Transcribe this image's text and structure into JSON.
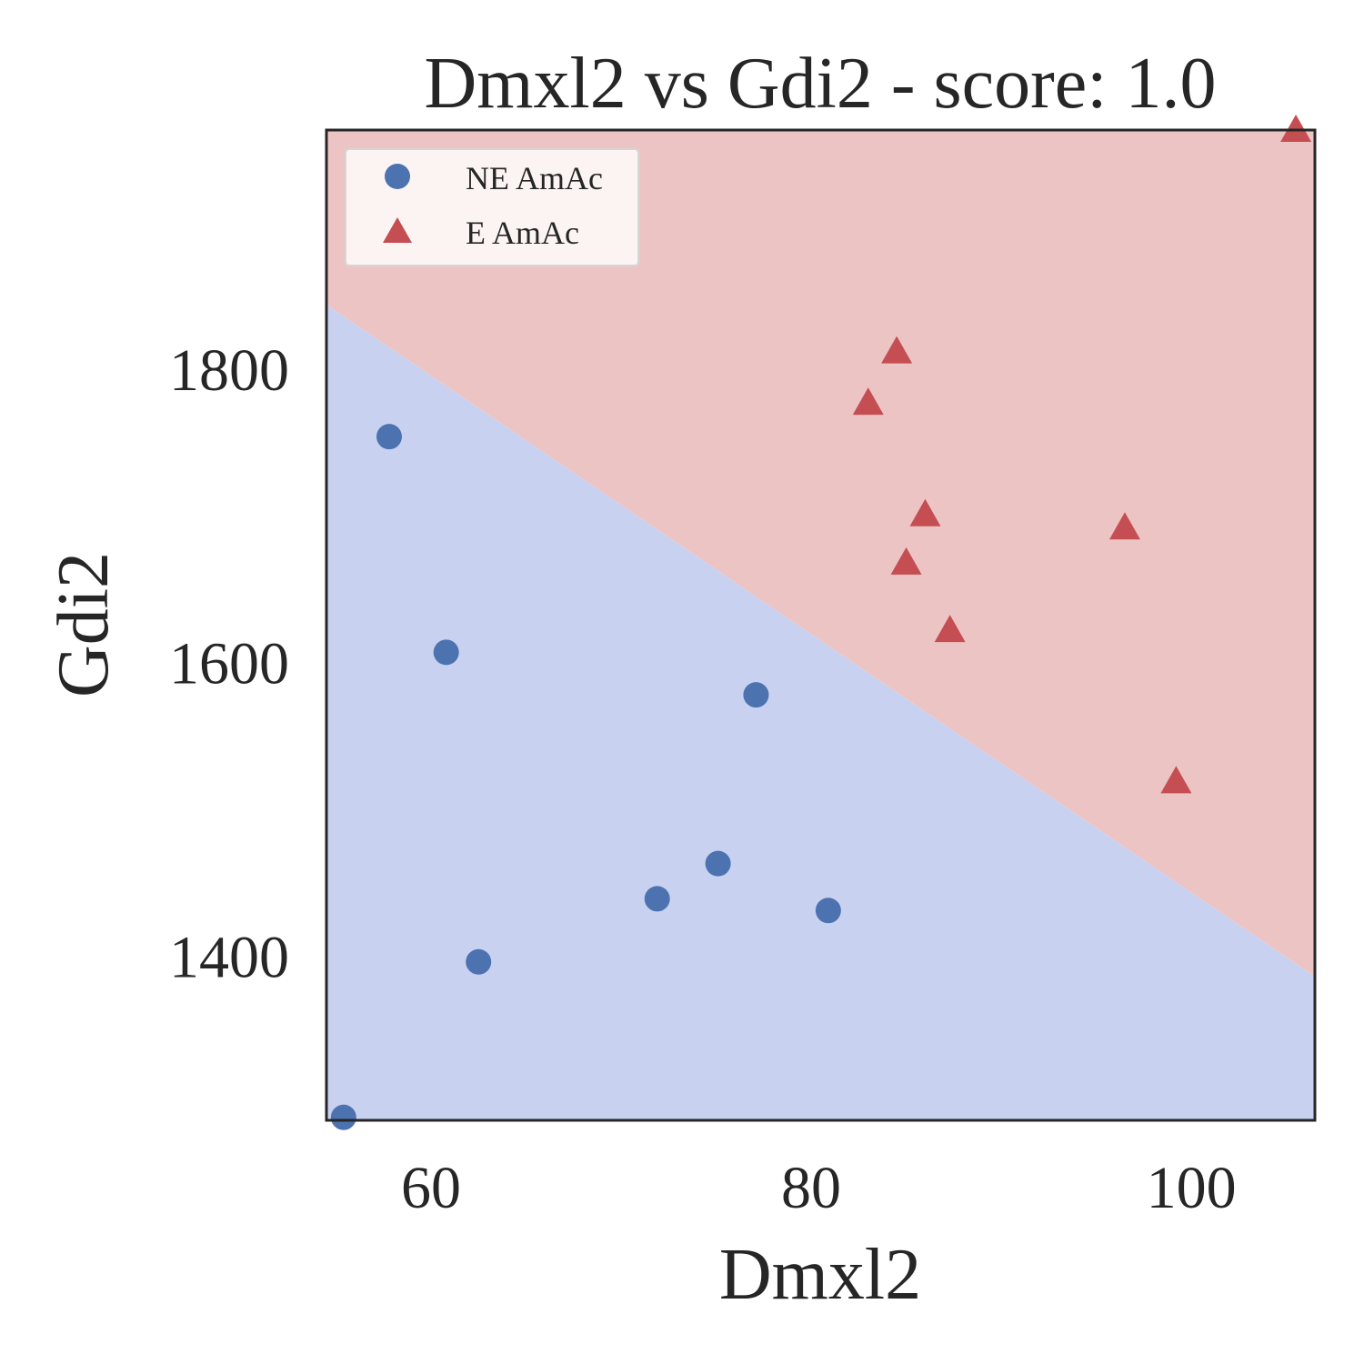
{
  "chart_data": {
    "type": "scatter",
    "title": "Dmxl2 vs Gdi2 - score: 1.0",
    "xlabel": "Dmxl2",
    "ylabel": "Gdi2",
    "xlim": [
      54.5,
      106.5
    ],
    "ylim": [
      1288,
      1963
    ],
    "xticks": [
      60,
      80,
      100
    ],
    "yticks": [
      1400,
      1600,
      1800
    ],
    "grid": false,
    "legend_position": "top-left",
    "decision_boundary": {
      "points": [
        [
          54.5,
          1844
        ],
        [
          106.5,
          1386
        ]
      ],
      "colors": {
        "above": "#edc4c4",
        "below": "#c9d1f1"
      }
    },
    "series": [
      {
        "name": "NE AmAc",
        "marker": "circle",
        "color": "#4c72b0",
        "points": [
          [
            57.8,
            1754
          ],
          [
            60.8,
            1607
          ],
          [
            62.5,
            1396
          ],
          [
            71.9,
            1439
          ],
          [
            75.1,
            1463
          ],
          [
            77.1,
            1578
          ],
          [
            80.9,
            1431
          ],
          [
            55.4,
            1290
          ]
        ]
      },
      {
        "name": "E AmAc",
        "marker": "triangle",
        "color": "#c44e52",
        "points": [
          [
            83.0,
            1777
          ],
          [
            84.5,
            1812
          ],
          [
            85.0,
            1668
          ],
          [
            86.0,
            1701
          ],
          [
            87.3,
            1622
          ],
          [
            96.5,
            1692
          ],
          [
            99.2,
            1519
          ],
          [
            105.5,
            1963
          ]
        ]
      }
    ]
  }
}
